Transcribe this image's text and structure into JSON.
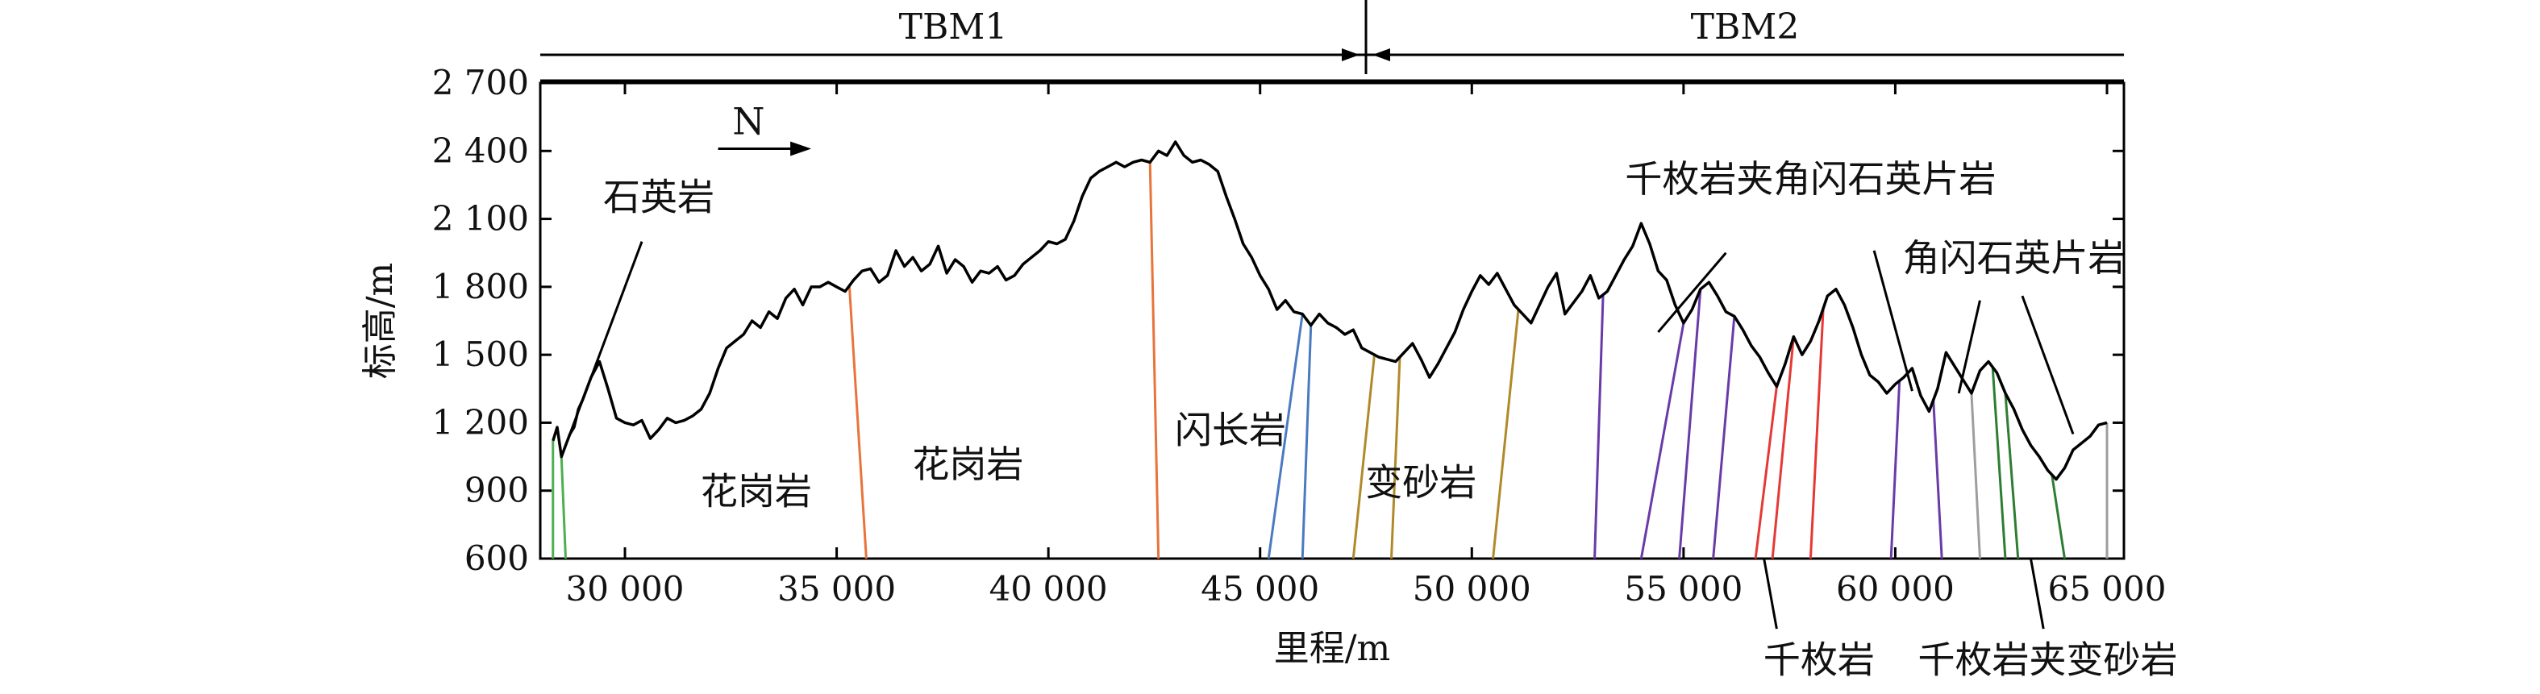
{
  "chart_data": {
    "type": "line",
    "title": "",
    "xlabel": "里程/m",
    "ylabel": "标高/m",
    "xlim": [
      28000,
      65400
    ],
    "ylim": [
      600,
      2700
    ],
    "x_ticks": [
      {
        "value": 30000,
        "label": "30 000"
      },
      {
        "value": 35000,
        "label": "35 000"
      },
      {
        "value": 40000,
        "label": "40 000"
      },
      {
        "value": 45000,
        "label": "45 000"
      },
      {
        "value": 50000,
        "label": "50 000"
      },
      {
        "value": 55000,
        "label": "55 000"
      },
      {
        "value": 60000,
        "label": "60 000"
      },
      {
        "value": 65000,
        "label": "65 000"
      }
    ],
    "y_ticks": [
      {
        "value": 600,
        "label": "600"
      },
      {
        "value": 900,
        "label": "900"
      },
      {
        "value": 1200,
        "label": "1 200"
      },
      {
        "value": 1500,
        "label": "1 500"
      },
      {
        "value": 1800,
        "label": "1 800"
      },
      {
        "value": 2100,
        "label": "2 100"
      },
      {
        "value": 2400,
        "label": "2 400"
      },
      {
        "value": 2700,
        "label": "2 700"
      }
    ],
    "series": [
      {
        "color": "#000000",
        "x": [
          28300,
          28400,
          28500,
          28600,
          28700,
          28800,
          28900,
          29000,
          29200,
          29400,
          29600,
          29800,
          30000,
          30200,
          30400,
          30600,
          30800,
          31000,
          31200,
          31400,
          31600,
          31800,
          32000,
          32200,
          32400,
          32600,
          32800,
          33000,
          33200,
          33400,
          33600,
          33800,
          34000,
          34200,
          34400,
          34600,
          34800,
          35000,
          35200,
          35400,
          35600,
          35800,
          36000,
          36200,
          36400,
          36600,
          36800,
          37000,
          37200,
          37400,
          37600,
          37800,
          38000,
          38200,
          38400,
          38600,
          38800,
          39000,
          39200,
          39400,
          39600,
          39800,
          40000,
          40200,
          40400,
          40600,
          40800,
          41000,
          41200,
          41400,
          41600,
          41800,
          42000,
          42200,
          42400,
          42600,
          42800,
          43000,
          43200,
          43400,
          43600,
          43800,
          44000,
          44200,
          44400,
          44600,
          44800,
          45000,
          45200,
          45400,
          45600,
          45800,
          46000,
          46200,
          46400,
          46600,
          46800,
          47000,
          47200,
          47400,
          47600,
          47800,
          48000,
          48200,
          48400,
          48600,
          48800,
          49000,
          49200,
          49400,
          49600,
          49800,
          50000,
          50200,
          50400,
          50600,
          50800,
          51000,
          51200,
          51400,
          51600,
          51800,
          52000,
          52200,
          52400,
          52600,
          52800,
          53000,
          53200,
          53400,
          53600,
          53800,
          54000,
          54200,
          54400,
          54600,
          54800,
          55000,
          55200,
          55400,
          55600,
          55800,
          56000,
          56200,
          56400,
          56600,
          56800,
          57000,
          57200,
          57400,
          57600,
          57800,
          58000,
          58200,
          58400,
          58600,
          58800,
          59000,
          59200,
          59400,
          59600,
          59800,
          60000,
          60200,
          60400,
          60600,
          60800,
          61000,
          61200,
          61400,
          61600,
          61800,
          62000,
          62200,
          62400,
          62600,
          62800,
          63000,
          63200,
          63400,
          63600,
          63800,
          64000,
          64200,
          64400,
          64600,
          64800,
          65000
        ],
        "y": [
          1120,
          1180,
          1050,
          1100,
          1150,
          1180,
          1260,
          1300,
          1400,
          1470,
          1350,
          1220,
          1200,
          1190,
          1210,
          1130,
          1170,
          1220,
          1200,
          1210,
          1230,
          1260,
          1330,
          1440,
          1530,
          1560,
          1590,
          1650,
          1620,
          1690,
          1660,
          1750,
          1790,
          1720,
          1800,
          1800,
          1820,
          1800,
          1780,
          1830,
          1870,
          1880,
          1820,
          1850,
          1960,
          1890,
          1930,
          1870,
          1900,
          1980,
          1860,
          1920,
          1890,
          1820,
          1870,
          1860,
          1890,
          1830,
          1850,
          1900,
          1930,
          1960,
          2000,
          1990,
          2010,
          2090,
          2200,
          2280,
          2310,
          2330,
          2350,
          2330,
          2350,
          2360,
          2350,
          2400,
          2380,
          2440,
          2380,
          2350,
          2360,
          2340,
          2310,
          2200,
          2100,
          1990,
          1930,
          1850,
          1790,
          1700,
          1740,
          1690,
          1680,
          1630,
          1680,
          1640,
          1620,
          1590,
          1610,
          1530,
          1510,
          1490,
          1480,
          1470,
          1510,
          1550,
          1480,
          1400,
          1460,
          1530,
          1600,
          1700,
          1780,
          1850,
          1810,
          1860,
          1790,
          1720,
          1680,
          1640,
          1720,
          1800,
          1860,
          1680,
          1730,
          1780,
          1850,
          1750,
          1780,
          1850,
          1920,
          1980,
          2080,
          1990,
          1870,
          1830,
          1720,
          1640,
          1700,
          1790,
          1820,
          1760,
          1690,
          1670,
          1610,
          1540,
          1490,
          1420,
          1360,
          1460,
          1580,
          1500,
          1560,
          1650,
          1760,
          1790,
          1720,
          1620,
          1500,
          1410,
          1380,
          1330,
          1370,
          1400,
          1440,
          1320,
          1250,
          1350,
          1510,
          1450,
          1390,
          1330,
          1430,
          1470,
          1420,
          1330,
          1260,
          1170,
          1100,
          1050,
          990,
          950,
          1000,
          1080,
          1110,
          1140,
          1190,
          1200
        ]
      }
    ],
    "boundaries": [
      {
        "x_top": 28300,
        "x_bottom": 28300,
        "color": "#4caf50"
      },
      {
        "x_top": 28500,
        "x_bottom": 28600,
        "color": "#4caf50"
      },
      {
        "x_top": 35300,
        "x_bottom": 35700,
        "color": "#e8743b"
      },
      {
        "x_top": 42400,
        "x_bottom": 42600,
        "color": "#e8743b"
      },
      {
        "x_top": 46000,
        "x_bottom": 45200,
        "color": "#4a7ac0"
      },
      {
        "x_top": 46200,
        "x_bottom": 46000,
        "color": "#4a7ac0"
      },
      {
        "x_top": 47700,
        "x_bottom": 47200,
        "color": "#b08a2a"
      },
      {
        "x_top": 48300,
        "x_bottom": 48100,
        "color": "#b08a2a"
      },
      {
        "x_top": 51100,
        "x_bottom": 50500,
        "color": "#b08a2a"
      },
      {
        "x_top": 53100,
        "x_bottom": 52900,
        "color": "#6a3aa8"
      },
      {
        "x_top": 55000,
        "x_bottom": 54000,
        "color": "#6a3aa8"
      },
      {
        "x_top": 55400,
        "x_bottom": 54900,
        "color": "#6a3aa8"
      },
      {
        "x_top": 56200,
        "x_bottom": 55700,
        "color": "#6a3aa8"
      },
      {
        "x_top": 57200,
        "x_bottom": 56700,
        "color": "#e53935"
      },
      {
        "x_top": 57600,
        "x_bottom": 57100,
        "color": "#e53935"
      },
      {
        "x_top": 58300,
        "x_bottom": 58000,
        "color": "#e53935"
      },
      {
        "x_top": 60100,
        "x_bottom": 59900,
        "color": "#6a3aa8"
      },
      {
        "x_top": 60900,
        "x_bottom": 61100,
        "color": "#6a3aa8"
      },
      {
        "x_top": 61800,
        "x_bottom": 62000,
        "color": "#9e9e9e"
      },
      {
        "x_top": 62300,
        "x_bottom": 62600,
        "color": "#2e7d32"
      },
      {
        "x_top": 62600,
        "x_bottom": 62900,
        "color": "#2e7d32"
      },
      {
        "x_top": 63700,
        "x_bottom": 64000,
        "color": "#2e7d32"
      },
      {
        "x_top": 65000,
        "x_bottom": 65000,
        "color": "#9e9e9e"
      }
    ],
    "tbm": [
      {
        "label": "TBM1",
        "x_start": 28000,
        "x_end": 47500
      },
      {
        "label": "TBM2",
        "x_start": 47500,
        "x_end": 65400
      }
    ],
    "north_label": "N",
    "annotations": [
      {
        "text": "石英岩",
        "x": 30800,
        "y": 2140,
        "anchor": "middle"
      },
      {
        "text": "花岗岩",
        "x": 33100,
        "y": 840,
        "anchor": "middle"
      },
      {
        "text": "花岗岩",
        "x": 38100,
        "y": 960,
        "anchor": "middle"
      },
      {
        "text": "闪长岩",
        "x": 44300,
        "y": 1110,
        "anchor": "middle"
      },
      {
        "text": "变砂岩",
        "x": 48800,
        "y": 880,
        "anchor": "middle"
      },
      {
        "text": "千枚岩夹角闪石英片岩",
        "x": 58000,
        "y": 2220,
        "anchor": "middle"
      },
      {
        "text": "角闪石英片岩",
        "x": 62800,
        "y": 1870,
        "anchor": "middle"
      },
      {
        "text": "千枚岩",
        "x": 58200,
        "y": 97,
        "anchor": "middle"
      },
      {
        "text": "千枚岩夹变砂岩",
        "x": 63600,
        "y": 97,
        "anchor": "middle"
      }
    ],
    "leaders": [
      {
        "x1": 30400,
        "y1": 2000,
        "x2": 28700,
        "y2": 1150
      },
      {
        "x1": 56000,
        "y1": 1950,
        "x2": 54400,
        "y2": 1600
      },
      {
        "x1": 59500,
        "y1": 1960,
        "x2": 60400,
        "y2": 1340
      },
      {
        "x1": 62000,
        "y1": 1740,
        "x2": 61500,
        "y2": 1330
      },
      {
        "x1": 63000,
        "y1": 1760,
        "x2": 64200,
        "y2": 1150
      },
      {
        "x1": 56900,
        "y1": 600,
        "x2": 57200,
        "y2": 290
      },
      {
        "x1": 63200,
        "y1": 600,
        "x2": 63500,
        "y2": 290
      }
    ]
  }
}
